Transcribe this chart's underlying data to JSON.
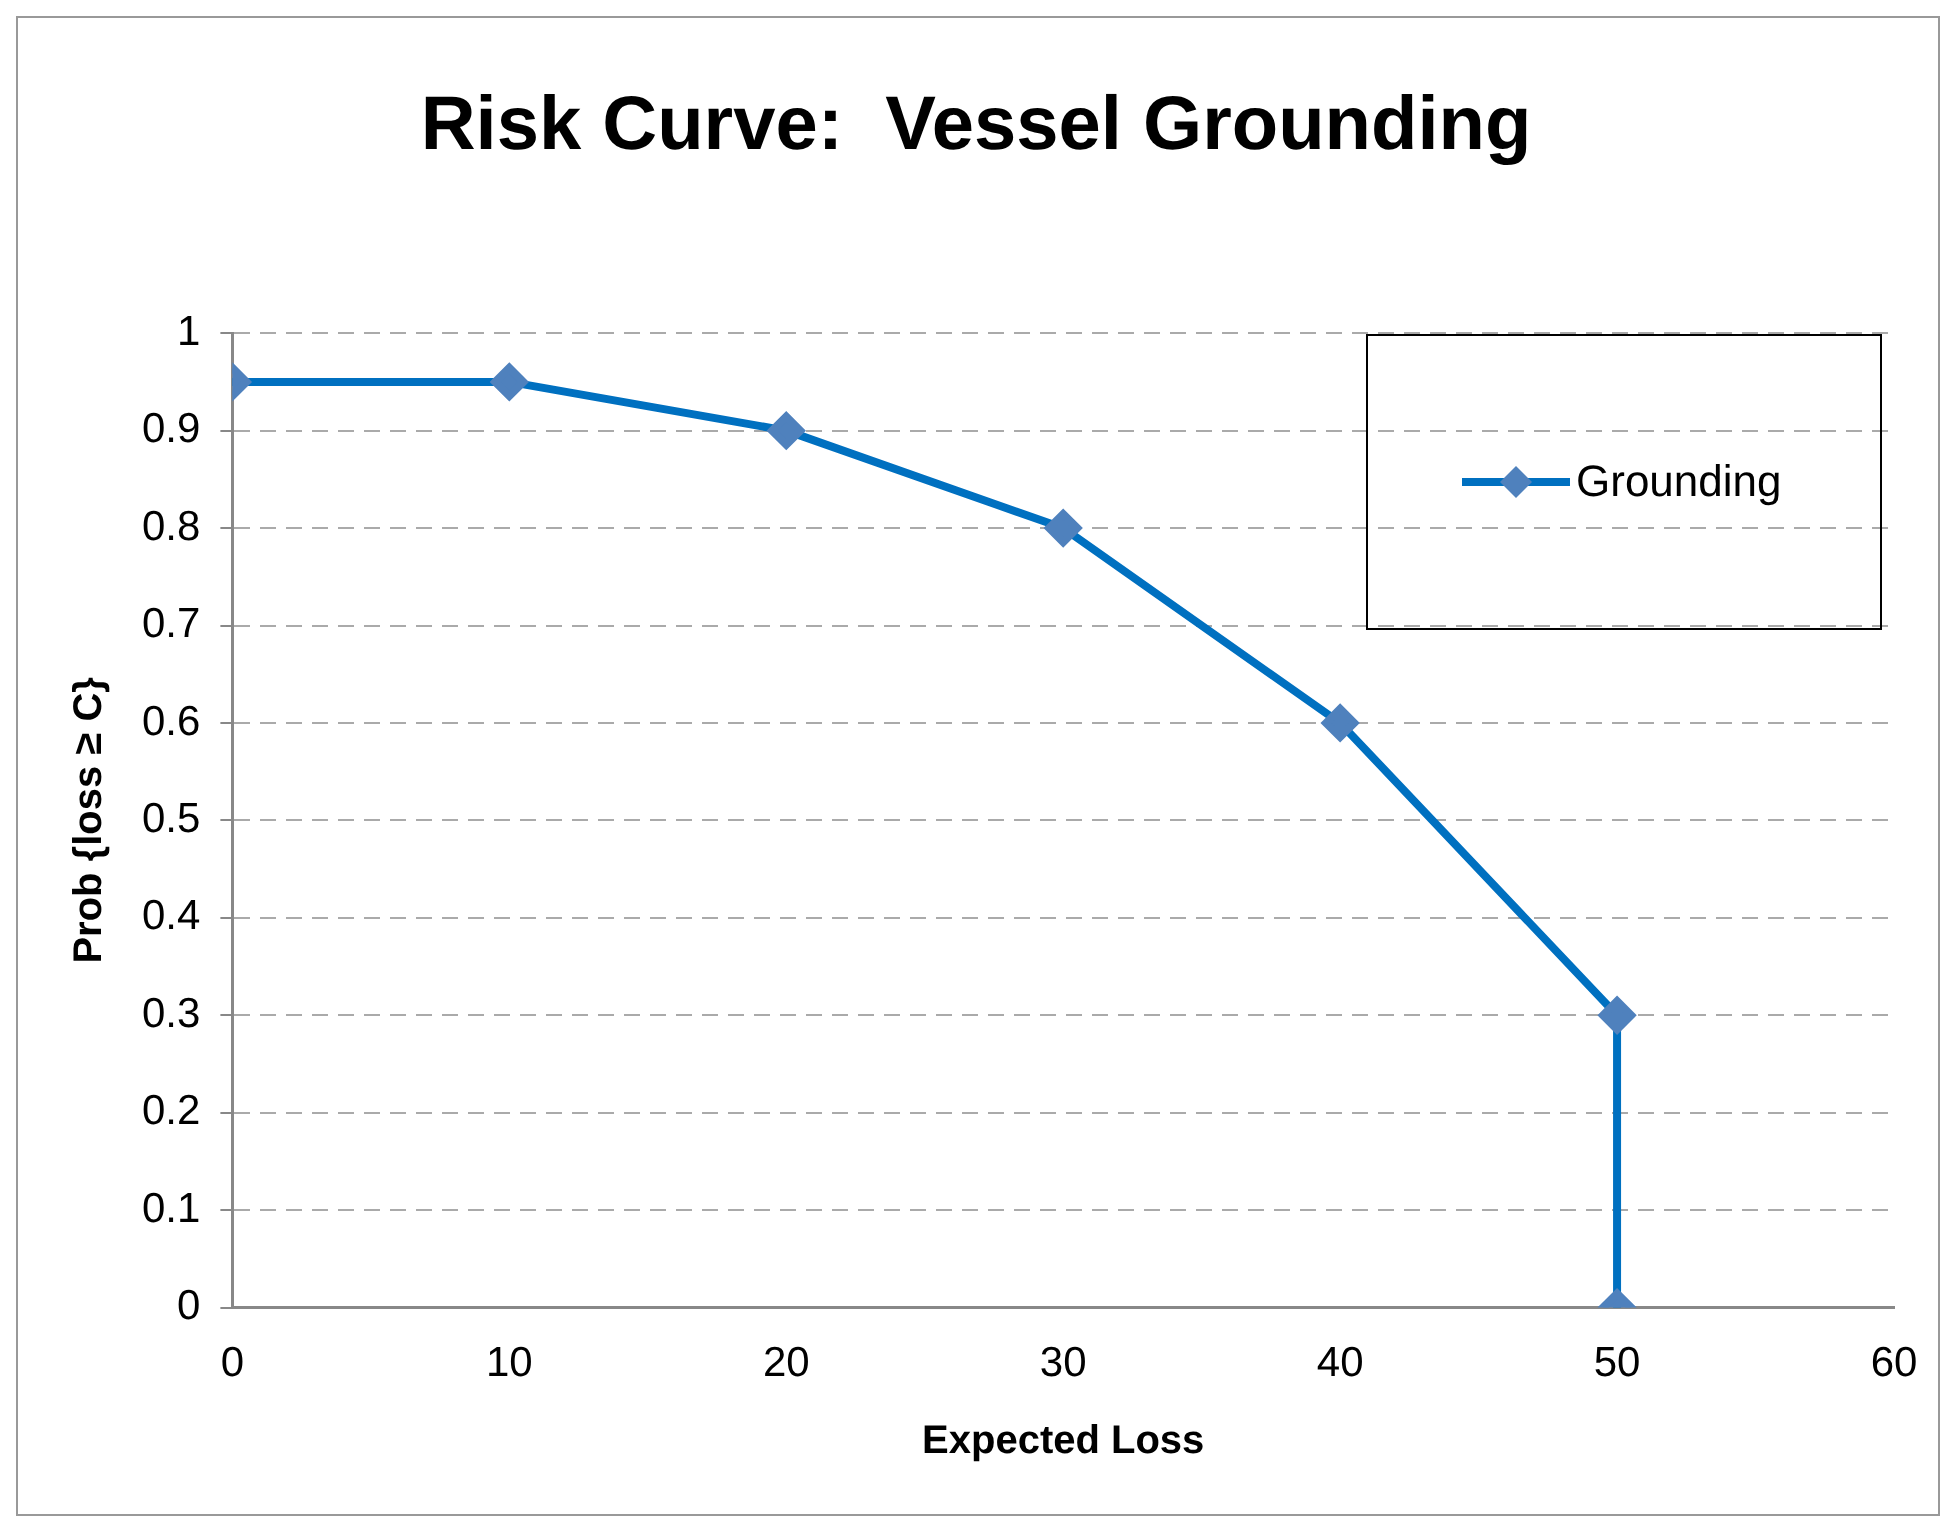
{
  "chart_data": {
    "type": "line",
    "title": "Risk Curve:  Vessel Grounding",
    "xlabel": "Expected Loss",
    "ylabel": "Prob {loss ≥ C}",
    "x": [
      0,
      10,
      20,
      30,
      40,
      50,
      50
    ],
    "series": [
      {
        "name": "Grounding",
        "color": "#0070c0",
        "values": [
          0.95,
          0.95,
          0.9,
          0.8,
          0.6,
          0.3,
          0
        ]
      }
    ],
    "xlim": [
      0,
      60
    ],
    "xticks": [
      0,
      10,
      20,
      30,
      40,
      50,
      60
    ],
    "ylim": [
      0,
      1
    ],
    "yticks": [
      0,
      0.1,
      0.2,
      0.3,
      0.4,
      0.5,
      0.6,
      0.7,
      0.8,
      0.9,
      1
    ],
    "grid": "y",
    "legend": "top right",
    "marker": "diamond",
    "line_style": "solid"
  }
}
